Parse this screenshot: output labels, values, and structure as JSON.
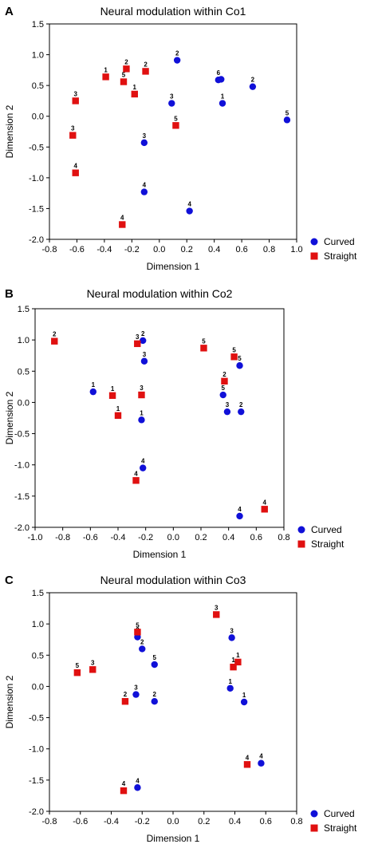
{
  "colors": {
    "curved": "#1010d8",
    "straight": "#e01010"
  },
  "chart_data": [
    {
      "type": "scatter",
      "panel": "A",
      "title": "Neural modulation within Co1",
      "xlabel": "Dimension 1",
      "ylabel": "Dimension 2",
      "xlim": [
        -0.8,
        1.0
      ],
      "ylim": [
        -2.0,
        1.5
      ],
      "xticks": [
        "-0.8",
        "-0.6",
        "-0.4",
        "-0.2",
        "0.0",
        "0.2",
        "0.4",
        "0.6",
        "0.8",
        "1.0"
      ],
      "yticks": [
        "-2.0",
        "-1.5",
        "-1.0",
        "-0.5",
        "0.0",
        "0.5",
        "1.0",
        "1.5"
      ],
      "grid": false,
      "legend": "bottom-right",
      "series": [
        {
          "name": "Curved",
          "marker": "circle",
          "points": [
            {
              "x": 0.13,
              "y": 0.91,
              "label": "2"
            },
            {
              "x": 0.43,
              "y": 0.59,
              "label": "6"
            },
            {
              "x": 0.45,
              "y": 0.6,
              "label": ""
            },
            {
              "x": 0.68,
              "y": 0.48,
              "label": "2"
            },
            {
              "x": 0.09,
              "y": 0.21,
              "label": "3"
            },
            {
              "x": 0.46,
              "y": 0.21,
              "label": "1"
            },
            {
              "x": 0.93,
              "y": -0.06,
              "label": "5"
            },
            {
              "x": -0.11,
              "y": -0.43,
              "label": "3"
            },
            {
              "x": -0.11,
              "y": -1.23,
              "label": "4"
            },
            {
              "x": 0.22,
              "y": -1.54,
              "label": "4"
            }
          ]
        },
        {
          "name": "Straight",
          "marker": "square",
          "points": [
            {
              "x": -0.24,
              "y": 0.77,
              "label": "2"
            },
            {
              "x": -0.1,
              "y": 0.73,
              "label": "2"
            },
            {
              "x": -0.39,
              "y": 0.64,
              "label": "1"
            },
            {
              "x": -0.26,
              "y": 0.56,
              "label": "5"
            },
            {
              "x": -0.18,
              "y": 0.36,
              "label": "1"
            },
            {
              "x": -0.61,
              "y": 0.25,
              "label": "3"
            },
            {
              "x": 0.12,
              "y": -0.15,
              "label": "5"
            },
            {
              "x": -0.63,
              "y": -0.31,
              "label": "3"
            },
            {
              "x": -0.61,
              "y": -0.92,
              "label": "4"
            },
            {
              "x": -0.27,
              "y": -1.76,
              "label": "4"
            }
          ]
        }
      ]
    },
    {
      "type": "scatter",
      "panel": "B",
      "title": "Neural modulation within Co2",
      "xlabel": "Dimension 1",
      "ylabel": "Dimension 2",
      "xlim": [
        -1.0,
        0.8
      ],
      "ylim": [
        -2.0,
        1.5
      ],
      "xticks": [
        "-1.0",
        "-0.8",
        "-0.6",
        "-0.4",
        "-0.2",
        "0.0",
        "0.2",
        "0.4",
        "0.6",
        "0.8"
      ],
      "yticks": [
        "-2.0",
        "-1.5",
        "-1.0",
        "-0.5",
        "0.0",
        "0.5",
        "1.0",
        "1.5"
      ],
      "grid": false,
      "legend": "bottom-right",
      "series": [
        {
          "name": "Curved",
          "marker": "circle",
          "points": [
            {
              "x": -0.22,
              "y": 0.99,
              "label": "2"
            },
            {
              "x": -0.21,
              "y": 0.66,
              "label": "3"
            },
            {
              "x": 0.48,
              "y": 0.59,
              "label": "5"
            },
            {
              "x": -0.58,
              "y": 0.17,
              "label": "1"
            },
            {
              "x": 0.36,
              "y": 0.12,
              "label": "5"
            },
            {
              "x": 0.39,
              "y": -0.15,
              "label": "3"
            },
            {
              "x": 0.49,
              "y": -0.15,
              "label": "2"
            },
            {
              "x": -0.23,
              "y": -0.28,
              "label": "1"
            },
            {
              "x": -0.22,
              "y": -1.05,
              "label": "4"
            },
            {
              "x": 0.48,
              "y": -1.82,
              "label": "4"
            }
          ]
        },
        {
          "name": "Straight",
          "marker": "square",
          "points": [
            {
              "x": -0.86,
              "y": 0.98,
              "label": "2"
            },
            {
              "x": -0.26,
              "y": 0.94,
              "label": "3"
            },
            {
              "x": 0.22,
              "y": 0.87,
              "label": "5"
            },
            {
              "x": 0.44,
              "y": 0.73,
              "label": "5"
            },
            {
              "x": 0.37,
              "y": 0.34,
              "label": "2"
            },
            {
              "x": -0.44,
              "y": 0.11,
              "label": "1"
            },
            {
              "x": -0.23,
              "y": 0.12,
              "label": "3"
            },
            {
              "x": -0.4,
              "y": -0.21,
              "label": "1"
            },
            {
              "x": -0.27,
              "y": -1.25,
              "label": "4"
            },
            {
              "x": 0.66,
              "y": -1.71,
              "label": "4"
            }
          ]
        }
      ]
    },
    {
      "type": "scatter",
      "panel": "C",
      "title": "Neural modulation within Co3",
      "xlabel": "Dimension 1",
      "ylabel": "Dimension 2",
      "xlim": [
        -0.8,
        0.8
      ],
      "ylim": [
        -2.0,
        1.5
      ],
      "xticks": [
        "-0.8",
        "-0.6",
        "-0.4",
        "-0.2",
        "0.0",
        "0.2",
        "0.4",
        "0.6",
        "0.8"
      ],
      "yticks": [
        "-2.0",
        "-1.5",
        "-1.0",
        "-0.5",
        "0.0",
        "0.5",
        "1.0",
        "1.5"
      ],
      "grid": false,
      "legend": "bottom-right",
      "series": [
        {
          "name": "Curved",
          "marker": "circle",
          "points": [
            {
              "x": 0.38,
              "y": 0.78,
              "label": "3"
            },
            {
              "x": -0.23,
              "y": 0.79,
              "label": "2"
            },
            {
              "x": -0.2,
              "y": 0.6,
              "label": "2"
            },
            {
              "x": -0.12,
              "y": 0.35,
              "label": "5"
            },
            {
              "x": 0.37,
              "y": -0.03,
              "label": "1"
            },
            {
              "x": -0.24,
              "y": -0.13,
              "label": "3"
            },
            {
              "x": -0.12,
              "y": -0.24,
              "label": "2"
            },
            {
              "x": 0.46,
              "y": -0.25,
              "label": "1"
            },
            {
              "x": 0.57,
              "y": -1.23,
              "label": "4"
            },
            {
              "x": -0.23,
              "y": -1.62,
              "label": "4"
            }
          ]
        },
        {
          "name": "Straight",
          "marker": "square",
          "points": [
            {
              "x": 0.28,
              "y": 1.15,
              "label": "3"
            },
            {
              "x": -0.23,
              "y": 0.87,
              "label": "5"
            },
            {
              "x": 0.42,
              "y": 0.39,
              "label": "1"
            },
            {
              "x": 0.39,
              "y": 0.31,
              "label": "1"
            },
            {
              "x": -0.52,
              "y": 0.27,
              "label": "3"
            },
            {
              "x": -0.62,
              "y": 0.22,
              "label": "5"
            },
            {
              "x": -0.31,
              "y": -0.24,
              "label": "2"
            },
            {
              "x": 0.48,
              "y": -1.25,
              "label": "4"
            },
            {
              "x": -0.32,
              "y": -1.67,
              "label": "4"
            }
          ]
        }
      ]
    }
  ]
}
